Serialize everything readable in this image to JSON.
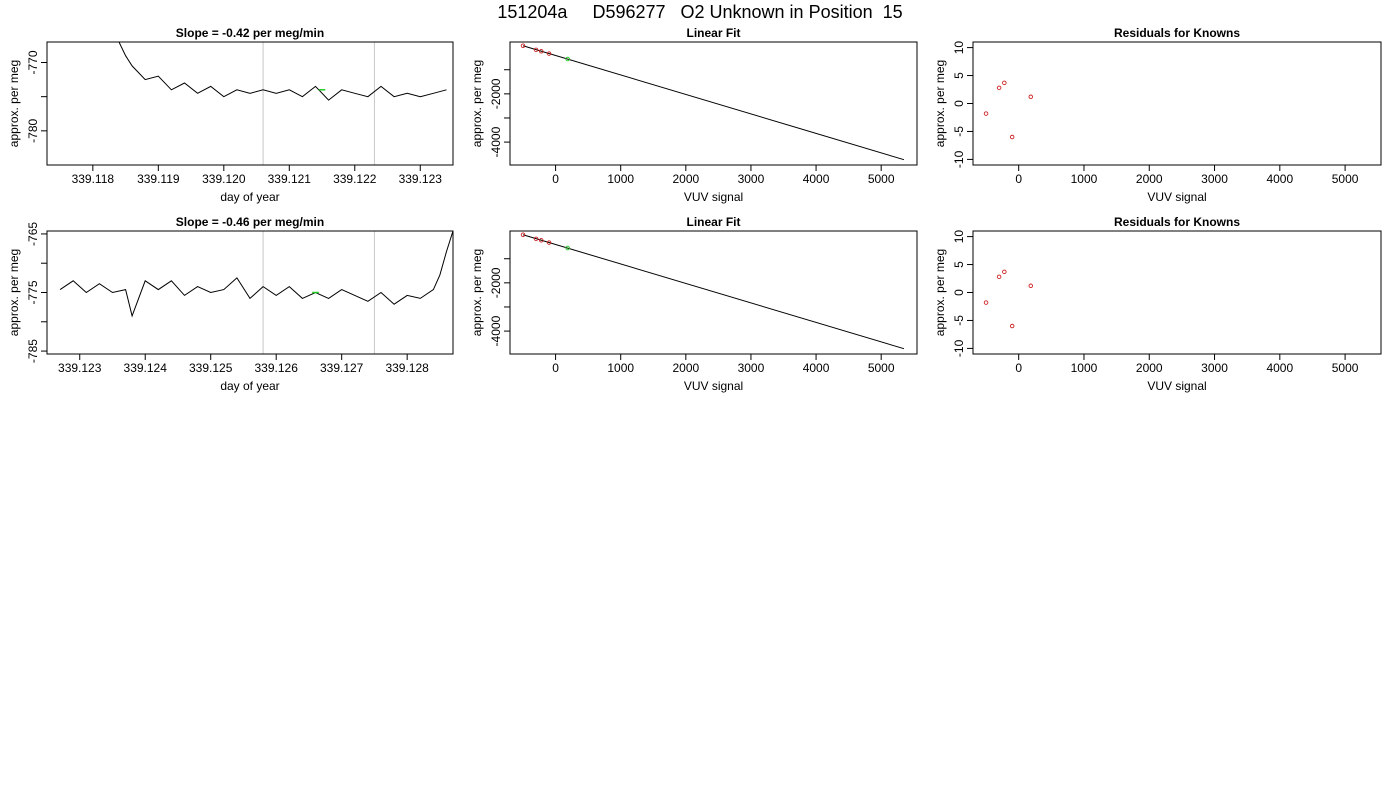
{
  "page_title": "151204a     D596277   O2 Unknown in Position  15",
  "colors": {
    "trace": "#000000",
    "marker": "#22cc22",
    "vertical_lines": "#c8c8c8",
    "knowns": "#cc2222"
  },
  "chart_data": [
    {
      "type": "line",
      "title": "Slope =  -0.42  per meg/min",
      "xlabel": "day of year",
      "ylabel": "approx. per meg",
      "xlim": [
        339.1173,
        339.1235
      ],
      "ylim": [
        -785.0,
        -767.0
      ],
      "x_ticks": [
        339.118,
        339.119,
        339.12,
        339.121,
        339.122,
        339.123
      ],
      "x_tick_labels": [
        "339.118",
        "339.119",
        "339.120",
        "339.121",
        "339.122",
        "339.123"
      ],
      "y_ticks": [
        -780,
        -775,
        -770
      ],
      "y_tick_labels": [
        "-780",
        "",
        "-770"
      ],
      "vlines": [
        339.1206,
        339.1223
      ],
      "series": [
        {
          "x": [
            339.1184,
            339.1185,
            339.1186,
            339.1188,
            339.119,
            339.1192,
            339.1194,
            339.1196,
            339.1198,
            339.12,
            339.1202,
            339.1204,
            339.1206,
            339.1208,
            339.121,
            339.1212,
            339.1214,
            339.1216,
            339.1218,
            339.122,
            339.1222,
            339.1224,
            339.1226,
            339.1228,
            339.123,
            339.1232,
            339.1234
          ],
          "y": [
            -767.0,
            -769.0,
            -770.5,
            -772.5,
            -772.0,
            -774.0,
            -773.0,
            -774.5,
            -773.5,
            -775.0,
            -774.0,
            -774.5,
            -774.0,
            -774.5,
            -774.0,
            -775.0,
            -773.5,
            -775.5,
            -774.0,
            -774.5,
            -775.0,
            -773.5,
            -775.0,
            -774.5,
            -775.0,
            -774.5,
            -774.0
          ]
        }
      ],
      "marker": {
        "x": [
          339.12145,
          339.1215,
          339.12155
        ],
        "y": [
          -774.0,
          -774.0,
          -774.0
        ]
      }
    },
    {
      "type": "scatter",
      "title": "Linear Fit",
      "xlabel": "VUV signal",
      "ylabel": "approx. per meg",
      "xlim": [
        -700,
        5550
      ],
      "ylim": [
        -4950,
        150
      ],
      "x_ticks": [
        0,
        1000,
        2000,
        3000,
        4000,
        5000
      ],
      "x_tick_labels": [
        "0",
        "1000",
        "2000",
        "3000",
        "4000",
        "5000"
      ],
      "y_ticks": [
        -4000,
        -3000,
        -2000,
        -1000
      ],
      "y_tick_labels": [
        "-4000",
        "",
        "-2000",
        ""
      ],
      "fit_line": {
        "x": [
          -500,
          5350
        ],
        "y": [
          -5,
          -4730
        ]
      },
      "knowns": {
        "x": [
          -500,
          -300,
          -220,
          -100
        ],
        "y": [
          -5,
          -175,
          -235,
          -330
        ]
      },
      "unknown": {
        "x": [
          185
        ],
        "y": [
          -555
        ]
      }
    },
    {
      "type": "scatter",
      "title": "Residuals for Knowns",
      "xlabel": "VUV signal",
      "ylabel": "approx. per meg",
      "xlim": [
        -700,
        5550
      ],
      "ylim": [
        -11,
        11
      ],
      "x_ticks": [
        0,
        1000,
        2000,
        3000,
        4000,
        5000
      ],
      "x_tick_labels": [
        "0",
        "1000",
        "2000",
        "3000",
        "4000",
        "5000"
      ],
      "y_ticks": [
        -10,
        -5,
        0,
        5,
        10
      ],
      "y_tick_labels": [
        "-10",
        "-5",
        "0",
        "5",
        "10"
      ],
      "points": {
        "x": [
          -500,
          -300,
          -220,
          -100,
          185
        ],
        "y": [
          -1.8,
          2.8,
          3.7,
          -6.0,
          1.2
        ]
      }
    },
    {
      "type": "line",
      "title": "Slope =  -0.46  per meg/min",
      "xlabel": "day of year",
      "ylabel": "approx. per meg",
      "xlim": [
        339.1225,
        339.1287
      ],
      "ylim": [
        -785.5,
        -764.5
      ],
      "x_ticks": [
        339.123,
        339.124,
        339.125,
        339.126,
        339.127,
        339.128
      ],
      "x_tick_labels": [
        "339.123",
        "339.124",
        "339.125",
        "339.126",
        "339.127",
        "339.128"
      ],
      "y_ticks": [
        -785,
        -780,
        -775,
        -770,
        -765
      ],
      "y_tick_labels": [
        "-785",
        "",
        "-775",
        "",
        "-765"
      ],
      "vlines": [
        339.1258,
        339.1275
      ],
      "series": [
        {
          "x": [
            339.1227,
            339.1229,
            339.1231,
            339.1233,
            339.1235,
            339.1237,
            339.1238,
            339.124,
            339.1242,
            339.1244,
            339.1246,
            339.1248,
            339.125,
            339.1252,
            339.1254,
            339.1256,
            339.1258,
            339.126,
            339.1262,
            339.1264,
            339.1266,
            339.1268,
            339.127,
            339.1272,
            339.1274,
            339.1276,
            339.1278,
            339.128,
            339.1282,
            339.1284,
            339.1285,
            339.1286,
            339.1287
          ],
          "y": [
            -774.5,
            -773.0,
            -775.0,
            -773.5,
            -775.0,
            -774.5,
            -779.0,
            -773.0,
            -774.5,
            -773.0,
            -775.5,
            -774.0,
            -775.0,
            -774.5,
            -772.5,
            -776.0,
            -774.0,
            -775.5,
            -774.0,
            -776.0,
            -775.0,
            -776.0,
            -774.5,
            -775.5,
            -776.5,
            -775.0,
            -777.0,
            -775.5,
            -776.0,
            -774.5,
            -772.0,
            -768.0,
            -764.5
          ]
        }
      ],
      "marker": {
        "x": [
          339.12655,
          339.1266,
          339.12665
        ],
        "y": [
          -775.0,
          -775.0,
          -775.0
        ]
      }
    },
    {
      "type": "scatter",
      "title": "Linear Fit",
      "xlabel": "VUV signal",
      "ylabel": "approx. per meg",
      "xlim": [
        -700,
        5550
      ],
      "ylim": [
        -4950,
        150
      ],
      "x_ticks": [
        0,
        1000,
        2000,
        3000,
        4000,
        5000
      ],
      "x_tick_labels": [
        "0",
        "1000",
        "2000",
        "3000",
        "4000",
        "5000"
      ],
      "y_ticks": [
        -4000,
        -3000,
        -2000,
        -1000
      ],
      "y_tick_labels": [
        "-4000",
        "",
        "-2000",
        ""
      ],
      "fit_line": {
        "x": [
          -500,
          5350
        ],
        "y": [
          -5,
          -4730
        ]
      },
      "knowns": {
        "x": [
          -500,
          -300,
          -220,
          -100
        ],
        "y": [
          -5,
          -175,
          -235,
          -330
        ]
      },
      "unknown": {
        "x": [
          185
        ],
        "y": [
          -555
        ]
      }
    },
    {
      "type": "scatter",
      "title": "Residuals for Knowns",
      "xlabel": "VUV signal",
      "ylabel": "approx. per meg",
      "xlim": [
        -700,
        5550
      ],
      "ylim": [
        -11,
        11
      ],
      "x_ticks": [
        0,
        1000,
        2000,
        3000,
        4000,
        5000
      ],
      "x_tick_labels": [
        "0",
        "1000",
        "2000",
        "3000",
        "4000",
        "5000"
      ],
      "y_ticks": [
        -10,
        -5,
        0,
        5,
        10
      ],
      "y_tick_labels": [
        "-10",
        "-5",
        "0",
        "5",
        "10"
      ],
      "points": {
        "x": [
          -500,
          -300,
          -220,
          -100,
          185
        ],
        "y": [
          -1.8,
          2.8,
          3.7,
          -6.0,
          1.2
        ]
      }
    }
  ]
}
